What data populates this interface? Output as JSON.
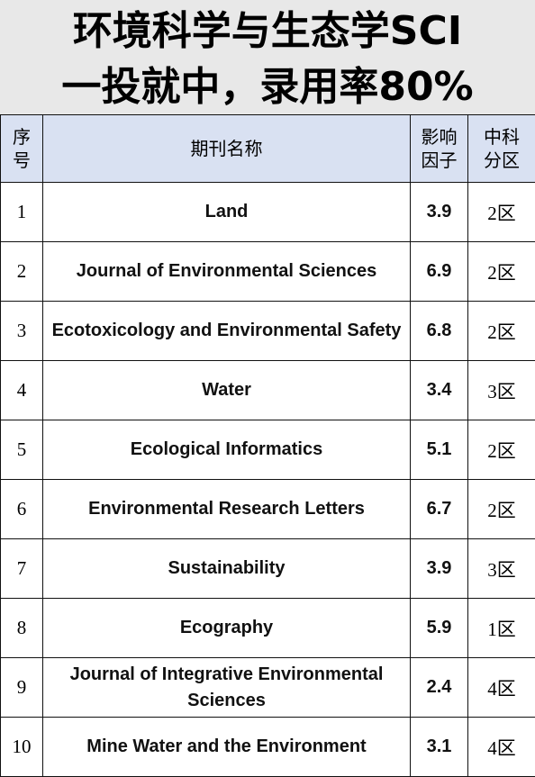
{
  "title": {
    "line1": "环境科学与生态学SCI",
    "line2": "一投就中，录用率80%"
  },
  "table": {
    "headers": {
      "index": [
        "序",
        "号"
      ],
      "name": "期刊名称",
      "impact": [
        "影响",
        "因子"
      ],
      "zone": [
        "中科",
        "分区"
      ]
    },
    "rows": [
      {
        "index": "1",
        "name": "Land",
        "impact": "3.9",
        "zone": "2区"
      },
      {
        "index": "2",
        "name": "Journal of Environmental Sciences",
        "impact": "6.9",
        "zone": "2区"
      },
      {
        "index": "3",
        "name": "Ecotoxicology and Environmental Safety",
        "impact": "6.8",
        "zone": "2区"
      },
      {
        "index": "4",
        "name": "Water",
        "impact": "3.4",
        "zone": "3区"
      },
      {
        "index": "5",
        "name": "Ecological Informatics",
        "impact": "5.1",
        "zone": "2区"
      },
      {
        "index": "6",
        "name": "Environmental Research Letters",
        "impact": "6.7",
        "zone": "2区"
      },
      {
        "index": "7",
        "name": "Sustainability",
        "impact": "3.9",
        "zone": "3区"
      },
      {
        "index": "8",
        "name": "Ecography",
        "impact": "5.9",
        "zone": "1区"
      },
      {
        "index": "9",
        "name": "Journal of Integrative Environmental Sciences",
        "impact": "2.4",
        "zone": "4区"
      },
      {
        "index": "10",
        "name": "Mine Water and the Environment",
        "impact": "3.1",
        "zone": "4区"
      }
    ]
  },
  "colors": {
    "title_background": "#e8e8e8",
    "header_background": "#d9e1f2",
    "border": "#111111"
  }
}
